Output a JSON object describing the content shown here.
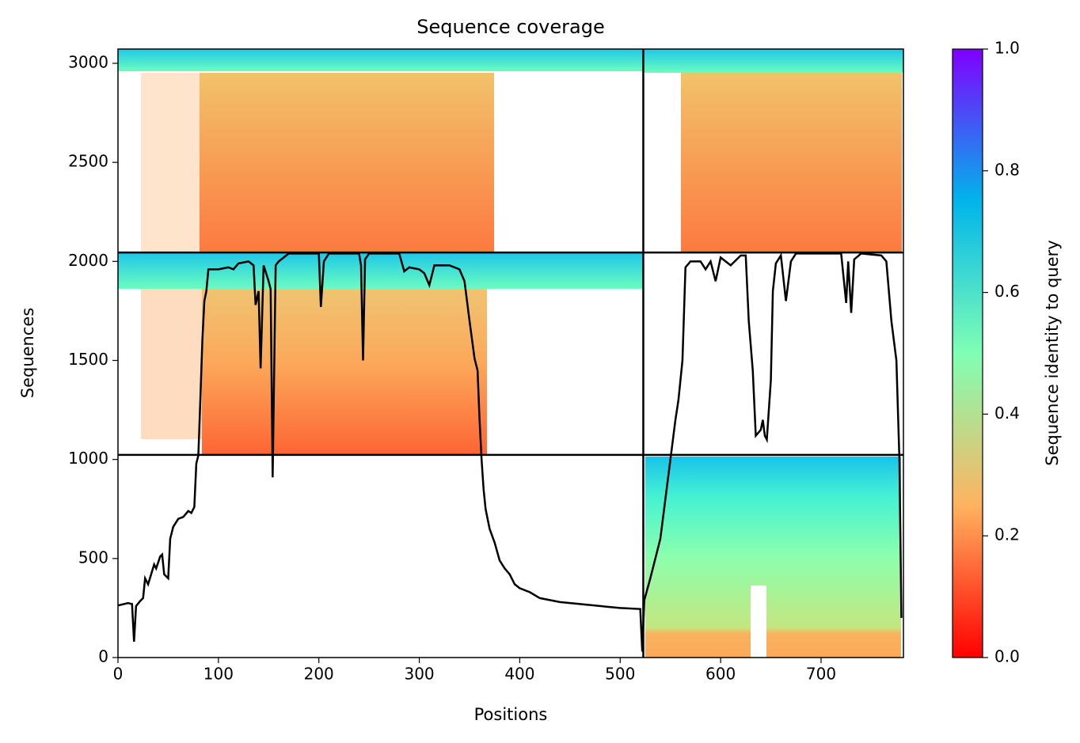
{
  "chart_data": {
    "type": "line",
    "title": "Sequence coverage",
    "xlabel": "Positions",
    "ylabel": "Sequences",
    "xlim": [
      0,
      782
    ],
    "ylim": [
      0,
      3072
    ],
    "xticks": [
      0,
      100,
      200,
      300,
      400,
      500,
      600,
      700
    ],
    "yticks": [
      0,
      500,
      1000,
      1500,
      2000,
      2500,
      3000
    ],
    "chain_breaks_x": [
      523
    ],
    "chain_breaks_y": [
      1023,
      2045
    ],
    "series": [
      {
        "color": "#000000",
        "x": [
          0,
          10,
          14,
          16,
          18,
          22,
          25,
          27,
          30,
          33,
          36,
          38,
          42,
          44,
          46,
          50,
          52,
          55,
          60,
          65,
          70,
          73,
          76,
          78,
          80,
          82,
          84,
          86,
          88,
          90,
          100,
          110,
          115,
          120,
          130,
          135,
          137,
          140,
          142,
          145,
          150,
          152,
          154,
          157,
          160,
          170,
          200,
          202,
          205,
          210,
          240,
          242,
          244,
          246,
          250,
          280,
          285,
          290,
          300,
          305,
          310,
          315,
          330,
          340,
          345,
          350,
          355,
          358,
          360,
          362,
          364,
          366,
          370,
          375,
          380,
          385,
          390,
          395,
          400,
          410,
          420,
          440,
          460,
          480,
          500,
          520,
          522,
          524,
          530,
          540,
          545,
          550,
          555,
          558,
          562,
          565,
          570,
          580,
          585,
          590,
          595,
          600,
          610,
          620,
          625,
          628,
          632,
          635,
          640,
          642,
          644,
          646,
          650,
          652,
          655,
          660,
          665,
          670,
          675,
          690,
          700,
          720,
          725,
          727,
          730,
          733,
          740,
          760,
          765,
          770,
          775,
          778,
          780
        ],
        "values": [
          263,
          275,
          270,
          80,
          260,
          285,
          300,
          400,
          370,
          420,
          470,
          450,
          510,
          520,
          420,
          400,
          600,
          660,
          700,
          710,
          740,
          730,
          760,
          980,
          1020,
          1300,
          1600,
          1800,
          1850,
          1960,
          1960,
          1970,
          1960,
          1990,
          2000,
          1980,
          1780,
          1850,
          1460,
          1980,
          1900,
          1860,
          910,
          1980,
          2000,
          2040,
          2040,
          1770,
          2000,
          2040,
          2040,
          1980,
          1500,
          2010,
          2040,
          2040,
          1950,
          1970,
          1960,
          1940,
          1880,
          1980,
          1980,
          1960,
          1900,
          1700,
          1510,
          1450,
          1200,
          1000,
          850,
          750,
          650,
          580,
          490,
          450,
          420,
          370,
          350,
          330,
          300,
          280,
          270,
          260,
          250,
          245,
          30,
          290,
          400,
          600,
          800,
          1000,
          1200,
          1300,
          1500,
          1970,
          2000,
          2000,
          1960,
          2000,
          1900,
          2020,
          1980,
          2030,
          2030,
          1700,
          1450,
          1120,
          1150,
          1200,
          1120,
          1100,
          1400,
          1850,
          1990,
          2030,
          1800,
          2000,
          2040,
          2040,
          2040,
          2040,
          1790,
          2000,
          1740,
          2010,
          2040,
          2030,
          2000,
          1700,
          1500,
          1000,
          200
        ]
      }
    ],
    "colorbar": {
      "label": "Sequence identity to query",
      "lim": [
        0,
        1
      ],
      "colors": [
        "#ff0000",
        "#ffb360",
        "#80ffb4",
        "#00b5eb",
        "#8000ff"
      ],
      "ticks": [
        {
          "value": 0,
          "label": "0.0"
        },
        {
          "value": 0.2,
          "label": "0.2"
        },
        {
          "value": 0.4,
          "label": "0.4"
        },
        {
          "value": 0.6,
          "label": "0.6"
        },
        {
          "value": 0.8,
          "label": "0.8"
        },
        {
          "value": 1,
          "label": "1.0"
        }
      ]
    }
  }
}
